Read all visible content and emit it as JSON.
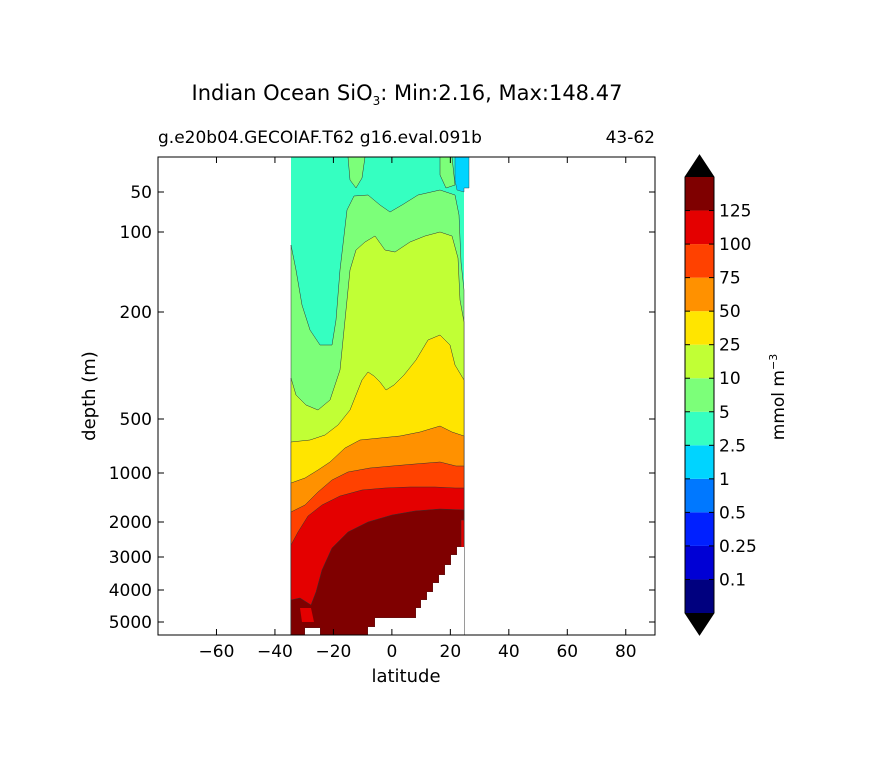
{
  "chart_data": {
    "type": "contourf",
    "title_main": "Indian Ocean SiO",
    "title_sub": "3",
    "title_rest": ": Min:2.16, Max:148.47",
    "subtitle_left": "g.e20b04.GECOIAF.T62 g16.eval.091b",
    "subtitle_right": "43-62",
    "xlabel": "latitude",
    "ylabel": "depth (m)",
    "xlim": [
      -80,
      90
    ],
    "xticks": [
      -60,
      -40,
      -20,
      0,
      20,
      40,
      60,
      80
    ],
    "xtick_labels": [
      "−60",
      "−40",
      "−20",
      "0",
      "20",
      "40",
      "60",
      "80"
    ],
    "yscale": "depth-stretched (shallow expanded)",
    "ytick_labels": [
      "50",
      "100",
      "200",
      "500",
      "1000",
      "2000",
      "3000",
      "4000",
      "5000"
    ],
    "colorbar": {
      "label": "mmol m",
      "label_sup": "−3",
      "levels": [
        "0.1",
        "0.25",
        "0.5",
        "1",
        "2.5",
        "5",
        "10",
        "25",
        "50",
        "75",
        "100",
        "125"
      ],
      "colors": [
        "#00007f",
        "#0000d5",
        "#0020ff",
        "#0078ff",
        "#00d4ff",
        "#35ffc1",
        "#7cff79",
        "#c1ff35",
        "#ffe500",
        "#ff9100",
        "#ff4100",
        "#e40000",
        "#7f0000"
      ],
      "extend": "both",
      "extend_color": "#000000"
    },
    "contour_bands": [
      {
        "min": 2.5,
        "max": 5,
        "color": "#35ffc1"
      },
      {
        "min": 5,
        "max": 10,
        "color": "#7cff79"
      },
      {
        "min": 10,
        "max": 25,
        "color": "#c1ff35"
      },
      {
        "min": 25,
        "max": 50,
        "color": "#ffe500"
      },
      {
        "min": 50,
        "max": 75,
        "color": "#ff9100"
      },
      {
        "min": 75,
        "max": 100,
        "color": "#ff4100"
      },
      {
        "min": 100,
        "max": 125,
        "color": "#e40000"
      },
      {
        "min": 125,
        "max": 148.47,
        "color": "#7f0000"
      },
      {
        "min": 1,
        "max": 2.5,
        "color": "#00d4ff"
      }
    ],
    "data_lat_range": [
      -34,
      26
    ]
  }
}
